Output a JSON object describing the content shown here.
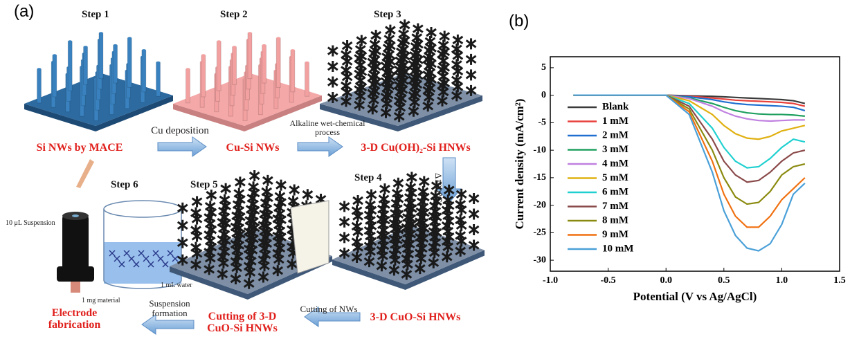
{
  "panel_a": {
    "label": "(a)",
    "steps": [
      "Step 1",
      "Step 2",
      "Step 3",
      "Step 4",
      "Step 5",
      "Step 6"
    ],
    "products": [
      "Si NWs by MACE",
      "Cu-Si NWs",
      "3-D Cu(OH)₂-Si HNWs",
      "3-D CuO-Si HNWs",
      "Cutting of 3-D CuO-Si HNWs",
      "Electrode fabrication"
    ],
    "processes": [
      "Cu deposition",
      "Alkaline wet-chemical process",
      "Δ180℃",
      "Cutting of NWs",
      "Suspension formation"
    ],
    "annotations": [
      "10 μL Suspension",
      "1 mL water",
      "1 mg material"
    ]
  },
  "chart_data": {
    "type": "line",
    "panel_label": "(b)",
    "x_label": "Potential (V vs Ag/AgCl)",
    "y_label": "Current density (mA/cm²)",
    "x": [
      -0.8,
      -0.4,
      0,
      0.2,
      0.4,
      0.5,
      0.6,
      0.7,
      0.8,
      0.9,
      1.0,
      1.1,
      1.2
    ],
    "series": [
      {
        "name": "Blank",
        "color": "#3b3b3b",
        "values": [
          0,
          0,
          0,
          -0.1,
          -0.2,
          -0.3,
          -0.4,
          -0.5,
          -0.6,
          -0.7,
          -0.8,
          -1.0,
          -1.5
        ]
      },
      {
        "name": "1 mM",
        "color": "#e8403b",
        "values": [
          0,
          0,
          0,
          -0.2,
          -0.5,
          -0.7,
          -0.9,
          -1.0,
          -1.1,
          -1.2,
          -1.3,
          -1.5,
          -2
        ]
      },
      {
        "name": "2 mM",
        "color": "#1f6fd0",
        "values": [
          0,
          0,
          0,
          -0.3,
          -0.8,
          -1.2,
          -1.5,
          -1.7,
          -1.8,
          -1.9,
          -2,
          -2.2,
          -2.8
        ]
      },
      {
        "name": "3 mM",
        "color": "#20a060",
        "values": [
          0,
          0,
          0,
          -0.5,
          -1.5,
          -2.2,
          -2.8,
          -3.2,
          -3.4,
          -3.5,
          -3.5,
          -3.6,
          -3.8
        ]
      },
      {
        "name": "4 mM",
        "color": "#c080e0",
        "values": [
          0,
          0,
          0,
          -0.6,
          -2,
          -3,
          -3.8,
          -4.3,
          -4.6,
          -4.7,
          -4.6,
          -4.5,
          -4.5
        ]
      },
      {
        "name": "5 mM",
        "color": "#e0b010",
        "values": [
          0,
          0,
          0,
          -1,
          -3.5,
          -5.5,
          -7,
          -7.8,
          -8,
          -7.5,
          -6.5,
          -6,
          -5.5
        ]
      },
      {
        "name": "6 mM",
        "color": "#20d0d0",
        "values": [
          0,
          0,
          0,
          -1.5,
          -6,
          -9.5,
          -12,
          -13.2,
          -13,
          -11.5,
          -9.5,
          -8,
          -8.5
        ]
      },
      {
        "name": "7 mM",
        "color": "#8b4a4a",
        "values": [
          0,
          0,
          0,
          -2,
          -8,
          -12,
          -14.5,
          -15.8,
          -15.5,
          -14,
          -12,
          -10.5,
          -10
        ]
      },
      {
        "name": "8 mM",
        "color": "#8a8a10",
        "values": [
          0,
          0,
          0,
          -2.5,
          -10,
          -15,
          -18.5,
          -19.8,
          -19.5,
          -17.5,
          -14.5,
          -13,
          -12.5
        ]
      },
      {
        "name": "9 mM",
        "color": "#f07010",
        "values": [
          0,
          0,
          0,
          -3,
          -12,
          -18,
          -22,
          -24,
          -24,
          -22,
          -19,
          -17,
          -15
        ]
      },
      {
        "name": "10 mM",
        "color": "#4aa0d8",
        "values": [
          0,
          0,
          0,
          -3.5,
          -14,
          -21,
          -25.5,
          -27.8,
          -28.3,
          -27,
          -23.5,
          -18,
          -16
        ]
      }
    ],
    "xlim": [
      -1.0,
      1.5
    ],
    "xticks": [
      {
        "value": -1,
        "label": "-1.0"
      },
      -0.5,
      {
        "value": 0,
        "label": "0.0"
      },
      0.5,
      {
        "value": 1,
        "label": "1.0"
      },
      1.5
    ],
    "ylim": [
      -32,
      7
    ],
    "yticks": [
      5,
      0,
      -5,
      -10,
      -15,
      -20,
      -25,
      -30
    ],
    "grid": false
  }
}
